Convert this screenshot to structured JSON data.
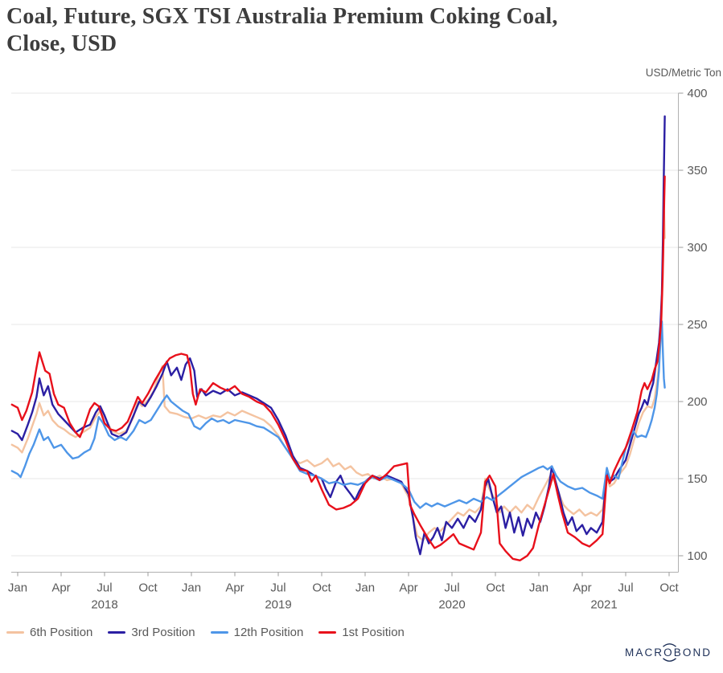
{
  "header": {
    "title_line1": "Coal, Future, SGX TSI Australia Premium Coking Coal,",
    "title_line2": "Close, USD",
    "unit_label": "USD/Metric Ton"
  },
  "footer": {
    "brand": "MACROBOND"
  },
  "chart_data": {
    "type": "line",
    "title": "Coal, Future, SGX TSI Australia Premium Coking Coal, Close, USD",
    "ylabel": "USD/Metric Ton",
    "ylim": [
      90,
      405
    ],
    "grid": "horizontal",
    "legend_position": "bottom-left",
    "x_unit": "months since 2018-01 (0 = Jan 2018, 45 = Oct 2021)",
    "y_ticks": [
      100,
      150,
      200,
      250,
      300,
      350,
      400
    ],
    "x_ticks": [
      {
        "m": 0,
        "label": "Jan"
      },
      {
        "m": 3,
        "label": "Apr"
      },
      {
        "m": 6,
        "label": "Jul"
      },
      {
        "m": 9,
        "label": "Oct"
      },
      {
        "m": 12,
        "label": "Jan"
      },
      {
        "m": 15,
        "label": "Apr"
      },
      {
        "m": 18,
        "label": "Jul"
      },
      {
        "m": 21,
        "label": "Oct"
      },
      {
        "m": 24,
        "label": "Jan"
      },
      {
        "m": 27,
        "label": "Apr"
      },
      {
        "m": 30,
        "label": "Jul"
      },
      {
        "m": 33,
        "label": "Oct"
      },
      {
        "m": 36,
        "label": "Jan"
      },
      {
        "m": 39,
        "label": "Apr"
      },
      {
        "m": 42,
        "label": "Jul"
      },
      {
        "m": 45,
        "label": "Oct"
      }
    ],
    "x_years": [
      {
        "m": 6,
        "label": "2018"
      },
      {
        "m": 18,
        "label": "2019"
      },
      {
        "m": 30,
        "label": "2020"
      },
      {
        "m": 40.5,
        "label": "2021"
      }
    ],
    "style": {
      "grid_color": "#e7e7e7",
      "axis_color": "#b0b0b0",
      "tick_color": "#9b9b9b",
      "text_color": "#595959",
      "title_color": "#3d3d3d",
      "line_width": 2.4
    },
    "series": [
      {
        "name": "6th Position",
        "color": "#f4c3a0",
        "x": [
          -0.4,
          0,
          0.3,
          0.7,
          1.0,
          1.3,
          1.5,
          1.8,
          2.1,
          2.4,
          2.8,
          3.2,
          3.6,
          4.0,
          4.5,
          5.0,
          5.4,
          5.7,
          6.0,
          6.5,
          7.0,
          7.5,
          8.0,
          8.3,
          8.6,
          9.0,
          9.4,
          9.7,
          10.0,
          10.15,
          10.5,
          11.0,
          11.5,
          12.0,
          12.5,
          13.0,
          13.5,
          14.0,
          14.5,
          15.0,
          15.5,
          16.0,
          16.5,
          17.0,
          17.5,
          18.0,
          18.5,
          19.0,
          19.5,
          20.0,
          20.5,
          21.0,
          21.4,
          21.8,
          22.2,
          22.6,
          23.0,
          23.4,
          23.8,
          24.2,
          24.6,
          25.0,
          25.5,
          26.0,
          26.5,
          27.0,
          27.3,
          27.6,
          28.0,
          28.4,
          28.8,
          29.2,
          29.6,
          30.0,
          30.4,
          30.8,
          31.2,
          31.6,
          32.0,
          32.3,
          32.6,
          33.0,
          33.3,
          33.6,
          34.0,
          34.4,
          34.8,
          35.2,
          35.6,
          36.0,
          36.4,
          36.8,
          37.1,
          37.4,
          37.7,
          38.0,
          38.4,
          38.8,
          39.2,
          39.6,
          40.0,
          40.4,
          40.7,
          40.9,
          41.2,
          41.5,
          42.0,
          42.3,
          42.6,
          42.9,
          43.2,
          43.5,
          43.8,
          44.0,
          44.2,
          44.35,
          44.45,
          44.55,
          44.6,
          44.65,
          44.7
        ],
        "values": [
          172,
          170,
          167,
          176,
          184,
          192,
          199,
          191,
          194,
          188,
          184,
          182,
          179,
          177,
          180,
          183,
          190,
          194,
          190,
          181,
          179,
          181,
          190,
          200,
          197,
          201,
          207,
          216,
          223,
          197,
          193,
          192,
          190,
          189,
          191,
          189,
          191,
          190,
          193,
          191,
          194,
          192,
          190,
          188,
          184,
          178,
          170,
          163,
          160,
          162,
          158,
          160,
          163,
          158,
          160,
          156,
          158,
          154,
          152,
          153,
          150,
          152,
          149,
          150,
          147,
          138,
          125,
          113,
          110,
          115,
          118,
          116,
          120,
          124,
          128,
          126,
          130,
          128,
          132,
          150,
          143,
          136,
          128,
          132,
          128,
          132,
          128,
          133,
          130,
          138,
          145,
          152,
          148,
          140,
          133,
          130,
          127,
          130,
          126,
          128,
          126,
          130,
          150,
          145,
          147,
          152,
          158,
          166,
          176,
          186,
          193,
          197,
          196,
          202,
          215,
          230,
          245,
          275,
          300,
          323,
          306
        ]
      },
      {
        "name": "3rd Position",
        "color": "#2b1fa3",
        "x": [
          -0.4,
          0,
          0.3,
          0.7,
          1.0,
          1.3,
          1.5,
          1.8,
          2.1,
          2.4,
          2.8,
          3.2,
          3.6,
          4.0,
          4.5,
          5.0,
          5.4,
          5.7,
          6.0,
          6.5,
          7.0,
          7.5,
          8.0,
          8.4,
          8.8,
          9.2,
          9.6,
          10.0,
          10.3,
          10.6,
          11.0,
          11.3,
          11.6,
          11.9,
          12.2,
          12.4,
          12.7,
          13.0,
          13.5,
          14.0,
          14.5,
          15.0,
          15.5,
          16.0,
          16.5,
          17.0,
          17.5,
          18.0,
          18.5,
          19.0,
          19.5,
          20.0,
          20.5,
          21.0,
          21.3,
          21.6,
          22.0,
          22.3,
          22.6,
          23.0,
          23.3,
          23.6,
          24.0,
          24.5,
          25.0,
          25.5,
          26.0,
          26.5,
          27.0,
          27.3,
          27.5,
          27.8,
          28.1,
          28.4,
          28.7,
          29.0,
          29.3,
          29.6,
          30.0,
          30.4,
          30.8,
          31.2,
          31.6,
          32.0,
          32.3,
          32.5,
          32.8,
          33.1,
          33.4,
          33.7,
          34.0,
          34.3,
          34.6,
          34.9,
          35.2,
          35.5,
          35.8,
          36.1,
          36.4,
          36.7,
          36.9,
          37.1,
          37.4,
          37.7,
          38.0,
          38.3,
          38.6,
          39.0,
          39.3,
          39.6,
          40.0,
          40.4,
          40.7,
          40.9,
          41.2,
          41.5,
          42.0,
          42.3,
          42.6,
          42.9,
          43.1,
          43.3,
          43.5,
          43.7,
          43.9,
          44.1,
          44.3,
          44.4,
          44.5,
          44.57,
          44.62,
          44.66,
          44.7
        ],
        "values": [
          181,
          179,
          175,
          185,
          193,
          203,
          215,
          204,
          210,
          198,
          192,
          188,
          184,
          180,
          183,
          185,
          193,
          197,
          191,
          179,
          177,
          180,
          191,
          200,
          197,
          203,
          210,
          218,
          226,
          217,
          222,
          214,
          224,
          228,
          220,
          203,
          208,
          204,
          207,
          205,
          208,
          204,
          206,
          204,
          202,
          199,
          196,
          188,
          178,
          165,
          157,
          155,
          152,
          150,
          143,
          138,
          148,
          152,
          145,
          140,
          136,
          142,
          148,
          152,
          150,
          152,
          150,
          148,
          140,
          125,
          112,
          101,
          115,
          108,
          112,
          118,
          110,
          122,
          118,
          124,
          118,
          126,
          122,
          130,
          145,
          150,
          138,
          128,
          132,
          118,
          128,
          115,
          125,
          113,
          124,
          118,
          128,
          122,
          132,
          145,
          158,
          150,
          140,
          128,
          120,
          125,
          116,
          120,
          114,
          118,
          115,
          122,
          156,
          148,
          150,
          155,
          162,
          172,
          182,
          192,
          196,
          201,
          198,
          206,
          212,
          225,
          238,
          250,
          270,
          305,
          340,
          362,
          385
        ]
      },
      {
        "name": "12th Position",
        "color": "#4e96e8",
        "x": [
          -0.4,
          0,
          0.2,
          0.5,
          0.8,
          1.1,
          1.5,
          1.8,
          2.1,
          2.5,
          3.0,
          3.4,
          3.8,
          4.2,
          4.6,
          5.0,
          5.3,
          5.6,
          5.9,
          6.3,
          6.7,
          7.1,
          7.5,
          8.0,
          8.4,
          8.8,
          9.2,
          9.6,
          10.0,
          10.3,
          10.6,
          11.0,
          11.4,
          11.8,
          12.2,
          12.6,
          13.0,
          13.4,
          13.8,
          14.2,
          14.6,
          15.0,
          15.5,
          16.0,
          16.5,
          17.0,
          17.5,
          18.0,
          18.5,
          19.0,
          19.5,
          20.0,
          20.5,
          21.0,
          21.5,
          22.0,
          22.5,
          23.0,
          23.5,
          24.0,
          24.5,
          25.0,
          25.5,
          26.0,
          26.5,
          27.0,
          27.4,
          27.8,
          28.2,
          28.6,
          29.0,
          29.5,
          30.0,
          30.5,
          31.0,
          31.5,
          32.0,
          32.4,
          32.8,
          33.2,
          33.6,
          34.0,
          34.4,
          34.8,
          35.2,
          35.6,
          36.0,
          36.3,
          36.6,
          36.9,
          37.2,
          37.5,
          38.0,
          38.5,
          39.0,
          39.5,
          40.0,
          40.4,
          40.7,
          40.9,
          41.2,
          41.5,
          42.0,
          42.3,
          42.5,
          42.8,
          43.1,
          43.4,
          43.6,
          43.8,
          44.0,
          44.15,
          44.3,
          44.4,
          44.5,
          44.58,
          44.64,
          44.7
        ],
        "values": [
          155,
          153,
          151,
          158,
          166,
          172,
          182,
          175,
          177,
          170,
          172,
          167,
          163,
          164,
          167,
          169,
          176,
          190,
          186,
          178,
          175,
          177,
          175,
          181,
          188,
          186,
          188,
          194,
          200,
          204,
          200,
          197,
          194,
          192,
          184,
          182,
          186,
          189,
          187,
          188,
          186,
          188,
          187,
          186,
          184,
          183,
          180,
          177,
          170,
          163,
          155,
          153,
          152,
          150,
          147,
          148,
          146,
          147,
          146,
          148,
          151,
          149,
          151,
          149,
          147,
          143,
          135,
          131,
          134,
          132,
          134,
          132,
          134,
          136,
          134,
          137,
          135,
          138,
          136,
          139,
          142,
          145,
          148,
          151,
          153,
          155,
          157,
          158,
          156,
          158,
          152,
          148,
          145,
          143,
          144,
          141,
          139,
          137,
          157,
          150,
          152,
          150,
          170,
          176,
          181,
          177,
          178,
          177,
          182,
          188,
          196,
          205,
          220,
          240,
          252,
          230,
          215,
          209
        ]
      },
      {
        "name": "1st Position",
        "color": "#e8101b",
        "x": [
          -0.4,
          0,
          0.3,
          0.6,
          1.0,
          1.3,
          1.5,
          1.7,
          1.9,
          2.2,
          2.5,
          2.8,
          3.2,
          3.6,
          4.0,
          4.3,
          4.6,
          5.0,
          5.3,
          5.6,
          6.0,
          6.4,
          6.8,
          7.2,
          7.6,
          8.0,
          8.3,
          8.6,
          9.0,
          9.5,
          10.0,
          10.5,
          10.9,
          11.3,
          11.7,
          11.9,
          12.1,
          12.3,
          12.6,
          13.0,
          13.5,
          14.0,
          14.5,
          15.0,
          15.5,
          16.0,
          16.5,
          17.0,
          17.5,
          18.0,
          18.5,
          19.0,
          19.5,
          20.0,
          20.3,
          20.6,
          21.0,
          21.5,
          22.0,
          22.5,
          23.0,
          23.5,
          24.0,
          24.5,
          25.0,
          25.5,
          26.0,
          26.9,
          27.1,
          27.4,
          27.8,
          28.3,
          28.8,
          29.2,
          29.6,
          30.1,
          30.5,
          31.0,
          31.5,
          32.0,
          32.3,
          32.6,
          33.0,
          33.3,
          33.7,
          34.2,
          34.7,
          35.2,
          35.6,
          36.0,
          36.4,
          36.8,
          37.0,
          37.3,
          37.6,
          38.0,
          38.5,
          39.0,
          39.5,
          40.0,
          40.4,
          40.7,
          40.9,
          41.2,
          41.6,
          42.0,
          42.4,
          42.8,
          43.1,
          43.3,
          43.5,
          43.8,
          44.0,
          44.2,
          44.35,
          44.45,
          44.55,
          44.62,
          44.66,
          44.7
        ],
        "values": [
          198,
          196,
          188,
          194,
          206,
          222,
          232,
          226,
          220,
          218,
          205,
          198,
          196,
          186,
          180,
          177,
          184,
          195,
          199,
          197,
          186,
          182,
          181,
          183,
          187,
          196,
          203,
          199,
          205,
          214,
          222,
          228,
          230,
          231,
          230,
          222,
          205,
          198,
          208,
          206,
          212,
          209,
          207,
          210,
          205,
          203,
          200,
          198,
          193,
          185,
          175,
          163,
          156,
          155,
          148,
          152,
          143,
          133,
          130,
          131,
          133,
          137,
          147,
          152,
          149,
          153,
          158,
          160,
          133,
          127,
          120,
          112,
          105,
          107,
          110,
          114,
          108,
          106,
          104,
          115,
          148,
          152,
          145,
          108,
          103,
          98,
          97,
          100,
          105,
          120,
          133,
          146,
          153,
          140,
          128,
          115,
          112,
          108,
          106,
          110,
          114,
          152,
          147,
          155,
          163,
          170,
          181,
          193,
          207,
          212,
          208,
          214,
          221,
          226,
          240,
          252,
          280,
          310,
          330,
          346
        ]
      }
    ]
  }
}
